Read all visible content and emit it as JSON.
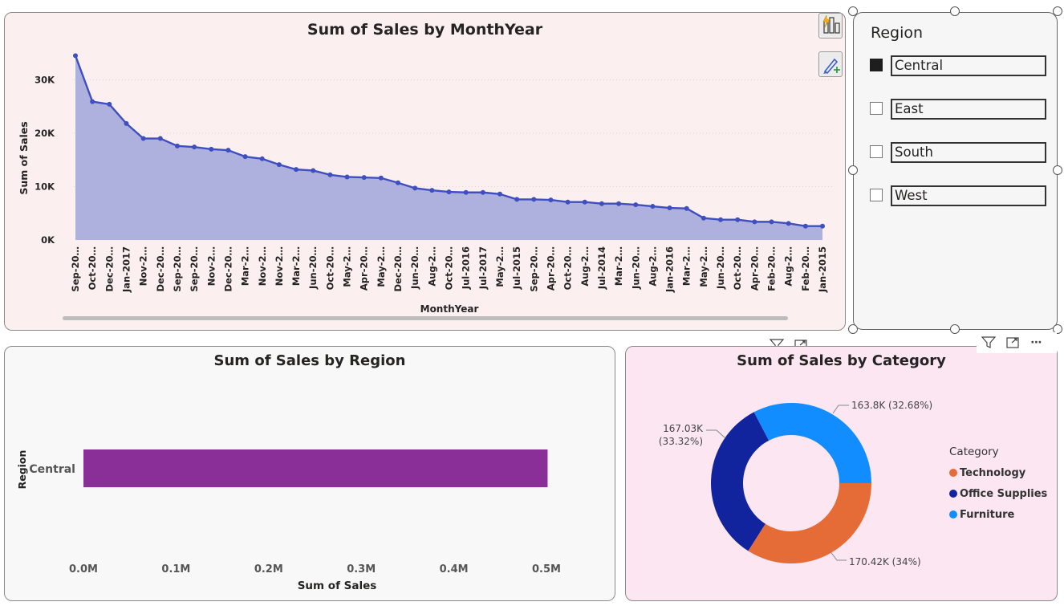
{
  "line_chart": {
    "title": "Sum of Sales by MonthYear",
    "xlabel": "MonthYear",
    "ylabel": "Sum of Sales",
    "y_ticks": [
      "0K",
      "10K",
      "20K",
      "30K"
    ]
  },
  "bar_chart": {
    "title": "Sum of Sales by Region",
    "xlabel": "Sum of Sales",
    "ylabel": "Region",
    "x_ticks": [
      "0.0M",
      "0.1M",
      "0.2M",
      "0.3M",
      "0.4M",
      "0.5M"
    ]
  },
  "donut_chart": {
    "title": "Sum of Sales by Category",
    "labels": [
      {
        "line1": "163.8K (32.68%)",
        "line2": ""
      },
      {
        "line1": "167.03K",
        "line2": "(33.32%)"
      },
      {
        "line1": "170.42K (34%)",
        "line2": ""
      }
    ]
  },
  "legend": {
    "title": "Category",
    "items": [
      "Technology",
      "Office Supplies",
      "Furniture"
    ]
  },
  "slicer": {
    "title": "Region",
    "items": [
      {
        "label": "Central",
        "checked": true
      },
      {
        "label": "East",
        "checked": false
      },
      {
        "label": "South",
        "checked": false
      },
      {
        "label": "West",
        "checked": false
      }
    ]
  },
  "icons": [
    "lightning-chart-icon",
    "format-brush-icon",
    "filter-icon",
    "focus-mode-icon",
    "more-options-icon"
  ],
  "colors": {
    "line": "#3f4fbf",
    "area": "#aeb1dd",
    "bar": "#8a2f97",
    "technology": "#e66c37",
    "office_supplies": "#12239e",
    "furniture": "#118dff",
    "line_panel_bg": "#fcefef",
    "donut_panel_bg": "#fbe6f1",
    "bar_panel_bg": "#f8f8f8"
  },
  "chart_data": [
    {
      "type": "area",
      "title": "Sum of Sales by MonthYear",
      "xlabel": "MonthYear",
      "ylabel": "Sum of Sales",
      "ylim": [
        0,
        35000
      ],
      "grid": true,
      "categories": [
        "Sep-20…",
        "Oct-20…",
        "Dec-20…",
        "Jan-2017",
        "Nov-2…",
        "Dec-20…",
        "Sep-20…",
        "Sep-20…",
        "Nov-2…",
        "Dec-20…",
        "Mar-2…",
        "Nov-2…",
        "Nov-2…",
        "Mar-2…",
        "Jun-20…",
        "Oct-20…",
        "May-2…",
        "Apr-20…",
        "May-2…",
        "Dec-20…",
        "Jun-20…",
        "Aug-2…",
        "Oct-20…",
        "Jul-2016",
        "Jul-2017",
        "May-2…",
        "Jul-2015",
        "Sep-20…",
        "Apr-20…",
        "Oct-20…",
        "Aug-2…",
        "Jul-2014",
        "Mar-2…",
        "Jun-20…",
        "Aug-2…",
        "Jan-2016",
        "Mar-2…",
        "May-2…",
        "Jun-20…",
        "Oct-20…",
        "Apr-20…",
        "Feb-20…",
        "Aug-2…",
        "Feb-20…",
        "Jan-2015"
      ],
      "values": [
        34500,
        25900,
        25400,
        21800,
        19000,
        19000,
        17600,
        17400,
        17000,
        16800,
        15600,
        15200,
        14100,
        13200,
        13000,
        12200,
        11800,
        11700,
        11600,
        10700,
        9700,
        9300,
        9000,
        8900,
        8900,
        8600,
        7600,
        7600,
        7500,
        7100,
        7100,
        6800,
        6800,
        6600,
        6300,
        6000,
        5900,
        4100,
        3800,
        3800,
        3400,
        3400,
        3100,
        2600,
        2600
      ]
    },
    {
      "type": "bar",
      "title": "Sum of Sales by Region",
      "xlabel": "Sum of Sales",
      "ylabel": "Region",
      "categories": [
        "Central"
      ],
      "values": [
        501250
      ],
      "xlim": [
        0,
        500000
      ]
    },
    {
      "type": "pie",
      "title": "Sum of Sales by Category",
      "categories": [
        "Technology",
        "Office Supplies",
        "Furniture"
      ],
      "values": [
        170420,
        167030,
        163800
      ],
      "percents": [
        34,
        33.32,
        32.68
      ]
    }
  ]
}
